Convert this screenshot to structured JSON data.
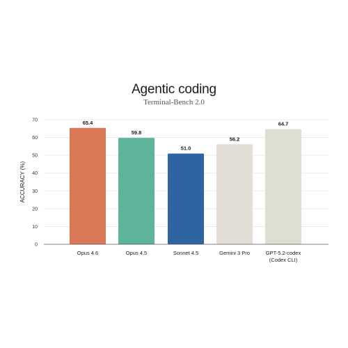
{
  "chart_data": {
    "type": "bar",
    "title": "Agentic coding",
    "subtitle": "Terminal-Bench 2.0",
    "xlabel": "",
    "ylabel": "ACCURACY (%)",
    "ylim": [
      0,
      70
    ],
    "yticks": [
      0,
      10,
      20,
      30,
      40,
      50,
      60,
      70
    ],
    "grid": true,
    "categories": [
      [
        "Opus 4.6"
      ],
      [
        "Opus 4.5"
      ],
      [
        "Sonnet 4.5"
      ],
      [
        "Gemini 3 Pro"
      ],
      [
        "GPT-5.2-codex",
        "(Codex CLI)"
      ]
    ],
    "values": [
      65.4,
      59.8,
      51.0,
      56.2,
      64.7
    ],
    "value_labels": [
      "65.4",
      "59.8",
      "51.0",
      "56.2",
      "64.7"
    ],
    "colors": [
      "#d97757",
      "#5db49a",
      "#2f64a2",
      "#e3ded5",
      "#dddfd3"
    ]
  }
}
